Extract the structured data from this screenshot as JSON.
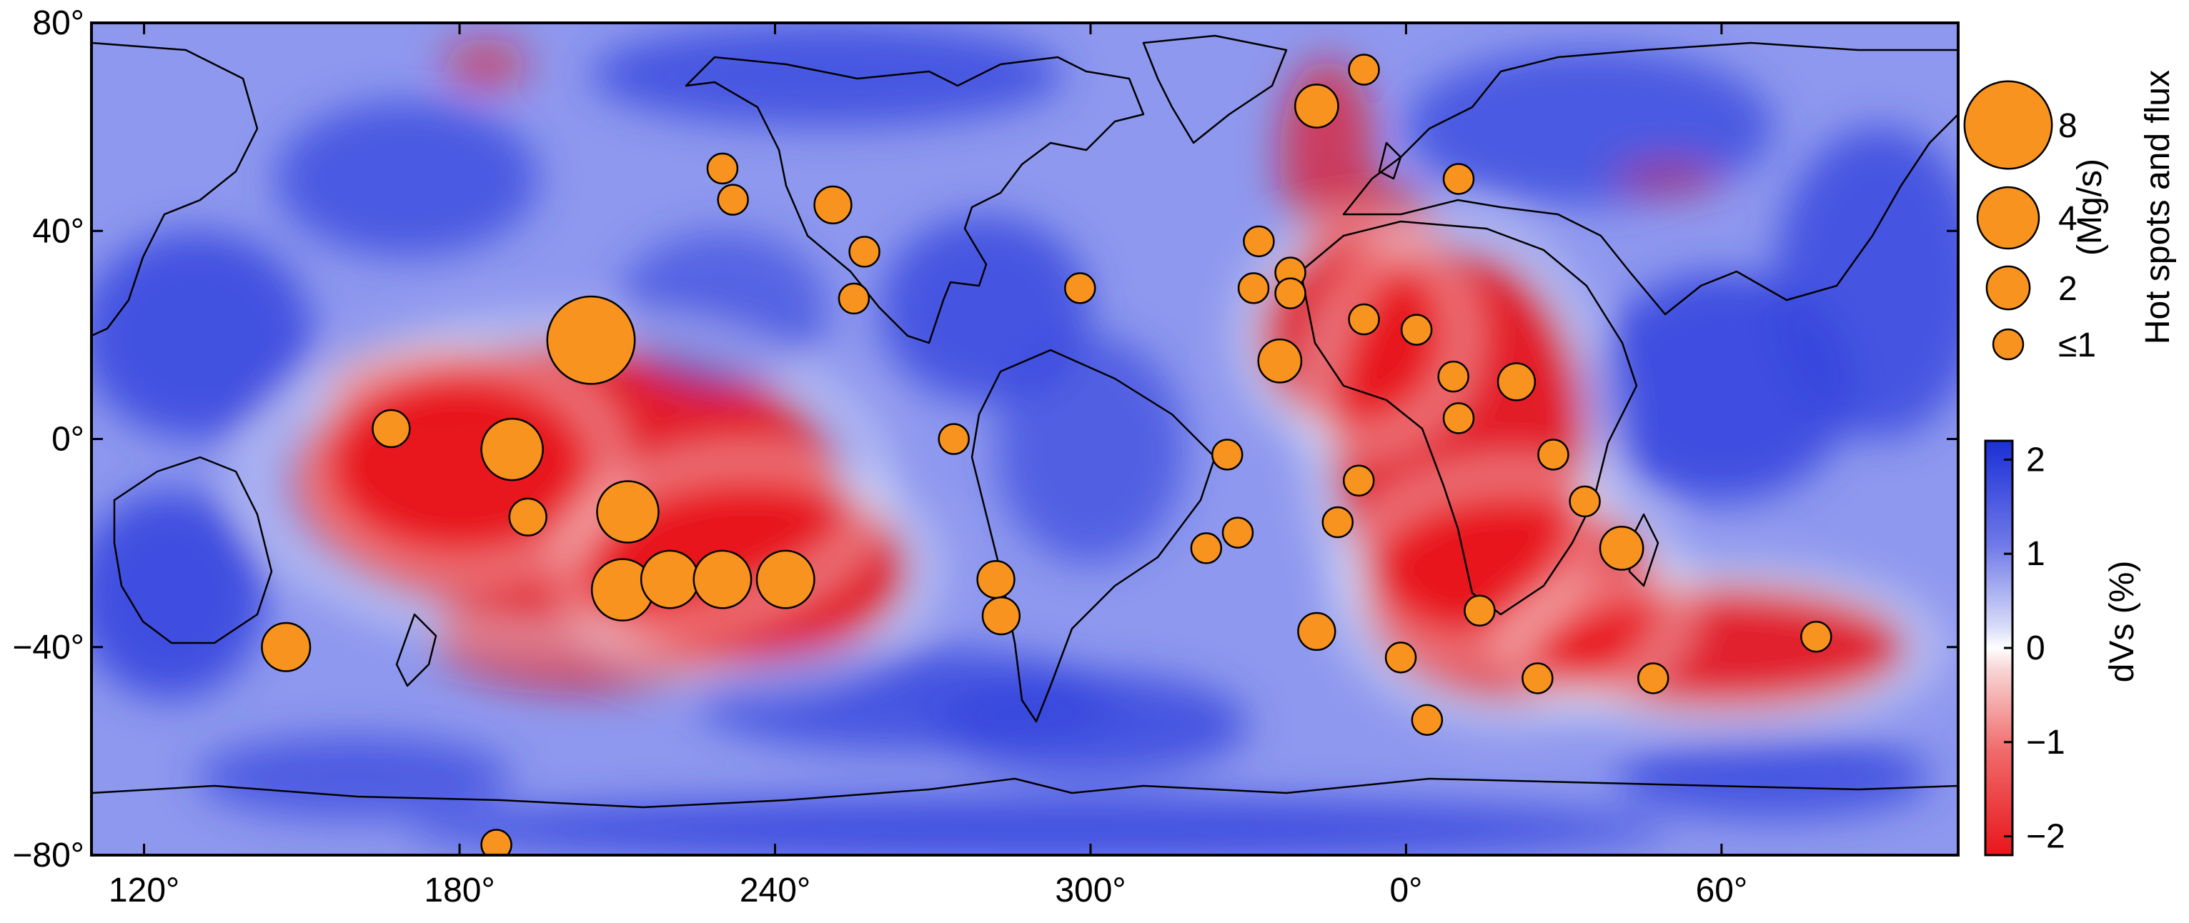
{
  "map": {
    "x_ticks": [
      {
        "lon": 120,
        "label": "120°"
      },
      {
        "lon": 180,
        "label": "180°"
      },
      {
        "lon": 240,
        "label": "240°"
      },
      {
        "lon": 300,
        "label": "300°"
      },
      {
        "lon": 360,
        "label": "0°"
      },
      {
        "lon": 420,
        "label": "60°"
      }
    ],
    "y_ticks": [
      {
        "lat": 80,
        "label": "80°"
      },
      {
        "lat": 40,
        "label": "40°"
      },
      {
        "lat": 0,
        "label": "0°"
      },
      {
        "lat": -40,
        "label": "−40°"
      },
      {
        "lat": -80,
        "label": "−80°"
      }
    ],
    "lon_range": [
      110,
      465
    ],
    "lat_range": [
      -80,
      80
    ],
    "colors": {
      "positive": "#3344dd",
      "negative": "#e8161b",
      "neutral": "#ffffff",
      "hotspot_fill": "#f7931e",
      "hotspot_stroke": "#000000",
      "coast": "#000000"
    }
  },
  "colorbar": {
    "label": "dVs (%)",
    "ticks": [
      {
        "value": 2,
        "label": "2"
      },
      {
        "value": 1,
        "label": "1"
      },
      {
        "value": 0,
        "label": "0"
      },
      {
        "value": -1,
        "label": "−1"
      },
      {
        "value": -2,
        "label": "−2"
      }
    ],
    "range": [
      -2.2,
      2.2
    ]
  },
  "legend": {
    "title": "Hot spots and flux",
    "unit": "(Mg/s)",
    "entries": [
      {
        "label": "8",
        "flux": 8
      },
      {
        "label": "4",
        "flux": 4
      },
      {
        "label": "2",
        "flux": 2
      },
      {
        "label": "≤1",
        "flux": 1
      }
    ]
  },
  "hotspots": [
    {
      "lon": 205,
      "lat": 19,
      "flux": 8
    },
    {
      "lon": 190,
      "lat": -2,
      "flux": 4
    },
    {
      "lon": 212,
      "lat": -14,
      "flux": 4
    },
    {
      "lon": 211,
      "lat": -29,
      "flux": 4
    },
    {
      "lon": 220,
      "lat": -27,
      "flux": 3.5
    },
    {
      "lon": 230,
      "lat": -27,
      "flux": 3.5
    },
    {
      "lon": 242,
      "lat": -27,
      "flux": 3.5
    },
    {
      "lon": 147,
      "lat": -40,
      "flux": 2.5
    },
    {
      "lon": 167,
      "lat": 2,
      "flux": 1.5
    },
    {
      "lon": 193,
      "lat": -15,
      "flux": 1.5
    },
    {
      "lon": 251,
      "lat": 45,
      "flux": 1.5
    },
    {
      "lon": 257,
      "lat": 36,
      "flux": 1
    },
    {
      "lon": 230,
      "lat": 52,
      "flux": 1
    },
    {
      "lon": 232,
      "lat": 46,
      "flux": 1
    },
    {
      "lon": 255,
      "lat": 27,
      "flux": 1
    },
    {
      "lon": 274,
      "lat": 0,
      "flux": 1
    },
    {
      "lon": 282,
      "lat": -27,
      "flux": 1.5
    },
    {
      "lon": 283,
      "lat": -34,
      "flux": 1.5
    },
    {
      "lon": 298,
      "lat": 29,
      "flux": 1
    },
    {
      "lon": 343,
      "lat": 64,
      "flux": 2
    },
    {
      "lon": 352,
      "lat": 71,
      "flux": 1
    },
    {
      "lon": 370,
      "lat": 50,
      "flux": 1
    },
    {
      "lon": 332,
      "lat": 38,
      "flux": 1
    },
    {
      "lon": 338,
      "lat": 32,
      "flux": 1
    },
    {
      "lon": 331,
      "lat": 29,
      "flux": 1
    },
    {
      "lon": 338,
      "lat": 28,
      "flux": 1
    },
    {
      "lon": 336,
      "lat": 15,
      "flux": 2
    },
    {
      "lon": 352,
      "lat": 23,
      "flux": 1
    },
    {
      "lon": 362,
      "lat": 21,
      "flux": 1
    },
    {
      "lon": 369,
      "lat": 12,
      "flux": 1
    },
    {
      "lon": 381,
      "lat": 11,
      "flux": 1.5
    },
    {
      "lon": 370,
      "lat": 4,
      "flux": 1
    },
    {
      "lon": 388,
      "lat": -3,
      "flux": 1
    },
    {
      "lon": 394,
      "lat": -12,
      "flux": 1
    },
    {
      "lon": 401,
      "lat": -21,
      "flux": 2
    },
    {
      "lon": 351,
      "lat": -8,
      "flux": 1
    },
    {
      "lon": 347,
      "lat": -16,
      "flux": 1
    },
    {
      "lon": 326,
      "lat": -3,
      "flux": 1
    },
    {
      "lon": 328,
      "lat": -18,
      "flux": 1
    },
    {
      "lon": 322,
      "lat": -21,
      "flux": 1
    },
    {
      "lon": 343,
      "lat": -37,
      "flux": 1.5
    },
    {
      "lon": 359,
      "lat": -42,
      "flux": 1
    },
    {
      "lon": 364,
      "lat": -54,
      "flux": 1
    },
    {
      "lon": 374,
      "lat": -33,
      "flux": 1
    },
    {
      "lon": 385,
      "lat": -46,
      "flux": 1
    },
    {
      "lon": 407,
      "lat": -46,
      "flux": 1
    },
    {
      "lon": 438,
      "lat": -38,
      "flux": 1
    },
    {
      "lon": 187,
      "lat": -78,
      "flux": 1
    }
  ],
  "anomalies": [
    {
      "lon": 200,
      "lat": -8,
      "rx": 52,
      "ry": 26,
      "value": -2
    },
    {
      "lon": 235,
      "lat": -25,
      "rx": 30,
      "ry": 18,
      "value": -2
    },
    {
      "lon": 180,
      "lat": -5,
      "rx": 25,
      "ry": 18,
      "value": -1.8
    },
    {
      "lon": 205,
      "lat": -38,
      "rx": 30,
      "ry": 10,
      "value": -1.3
    },
    {
      "lon": 175,
      "lat": 10,
      "rx": 20,
      "ry": 8,
      "value": -1.2
    },
    {
      "lon": 370,
      "lat": 0,
      "rx": 24,
      "ry": 36,
      "value": -2
    },
    {
      "lon": 350,
      "lat": 20,
      "rx": 18,
      "ry": 18,
      "value": -1.8
    },
    {
      "lon": 380,
      "lat": -30,
      "rx": 28,
      "ry": 20,
      "value": -2
    },
    {
      "lon": 420,
      "lat": -40,
      "rx": 35,
      "ry": 12,
      "value": -1.9
    },
    {
      "lon": 345,
      "lat": 55,
      "rx": 9,
      "ry": 18,
      "value": -1.1
    },
    {
      "lon": 355,
      "lat": 35,
      "rx": 12,
      "ry": 14,
      "value": -1.4
    },
    {
      "lon": 300,
      "lat": -2,
      "rx": 18,
      "ry": 22,
      "value": 1
    },
    {
      "lon": 280,
      "lat": 25,
      "rx": 20,
      "ry": 18,
      "value": 1.5
    },
    {
      "lon": 130,
      "lat": 20,
      "rx": 22,
      "ry": 20,
      "value": 1.6
    },
    {
      "lon": 125,
      "lat": -30,
      "rx": 18,
      "ry": 20,
      "value": 1.7
    },
    {
      "lon": 265,
      "lat": -50,
      "rx": 40,
      "ry": 10,
      "value": 1.4
    },
    {
      "lon": 300,
      "lat": -55,
      "rx": 30,
      "ry": 10,
      "value": 1.5
    },
    {
      "lon": 420,
      "lat": 10,
      "rx": 25,
      "ry": 22,
      "value": 1.7
    },
    {
      "lon": 450,
      "lat": 30,
      "rx": 20,
      "ry": 30,
      "value": 1.5
    },
    {
      "lon": 250,
      "lat": 70,
      "rx": 45,
      "ry": 10,
      "value": 1.4
    },
    {
      "lon": 170,
      "lat": 50,
      "rx": 25,
      "ry": 15,
      "value": 1.3
    },
    {
      "lon": 290,
      "lat": -75,
      "rx": 120,
      "ry": 6,
      "value": 1.7
    },
    {
      "lon": 395,
      "lat": 60,
      "rx": 35,
      "ry": 15,
      "value": 1.3
    },
    {
      "lon": 230,
      "lat": 25,
      "rx": 20,
      "ry": 15,
      "value": 0.9
    },
    {
      "lon": 160,
      "lat": -65,
      "rx": 30,
      "ry": 8,
      "value": 1.2
    },
    {
      "lon": 430,
      "lat": -65,
      "rx": 30,
      "ry": 8,
      "value": 1.4
    },
    {
      "lon": 185,
      "lat": 72,
      "rx": 8,
      "ry": 5,
      "value": -0.7
    },
    {
      "lon": 410,
      "lat": 50,
      "rx": 10,
      "ry": 3,
      "value": -0.6
    }
  ]
}
